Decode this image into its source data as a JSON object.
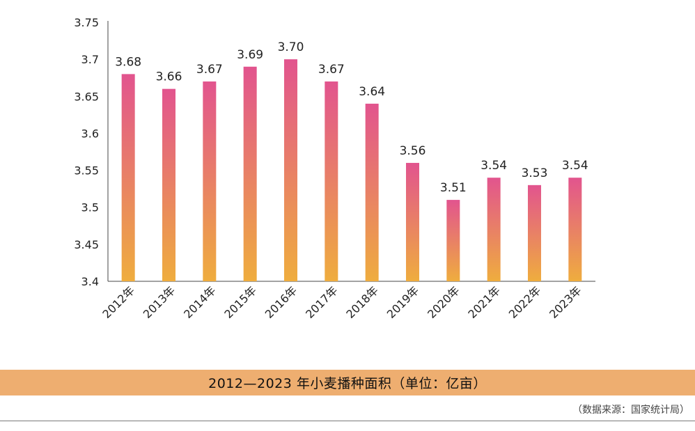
{
  "chart_data": {
    "type": "bar",
    "title": "2012—2023 年小麦播种面积（单位：亿亩）",
    "source": "（数据来源：国家统计局）",
    "categories": [
      "2012年",
      "2013年",
      "2014年",
      "2015年",
      "2016年",
      "2017年",
      "2018年",
      "2019年",
      "2020年",
      "2021年",
      "2022年",
      "2023年"
    ],
    "values": [
      3.68,
      3.66,
      3.67,
      3.69,
      3.7,
      3.67,
      3.64,
      3.56,
      3.51,
      3.54,
      3.53,
      3.54
    ],
    "value_labels": [
      "3.68",
      "3.66",
      "3.67",
      "3.69",
      "3.70",
      "3.67",
      "3.64",
      "3.56",
      "3.51",
      "3.54",
      "3.53",
      "3.54"
    ],
    "ylim": [
      3.4,
      3.75
    ],
    "yticks": [
      3.4,
      3.45,
      3.5,
      3.55,
      3.6,
      3.65,
      3.7,
      3.75
    ],
    "ytick_labels": [
      "3.4",
      "3.45",
      "3.5",
      "3.55",
      "3.6",
      "3.65",
      "3.7",
      "3.75"
    ],
    "grid": false,
    "bar_color_top": "#e2548e",
    "bar_color_bottom": "#efad3e",
    "title_band_color": "#eeae70"
  }
}
